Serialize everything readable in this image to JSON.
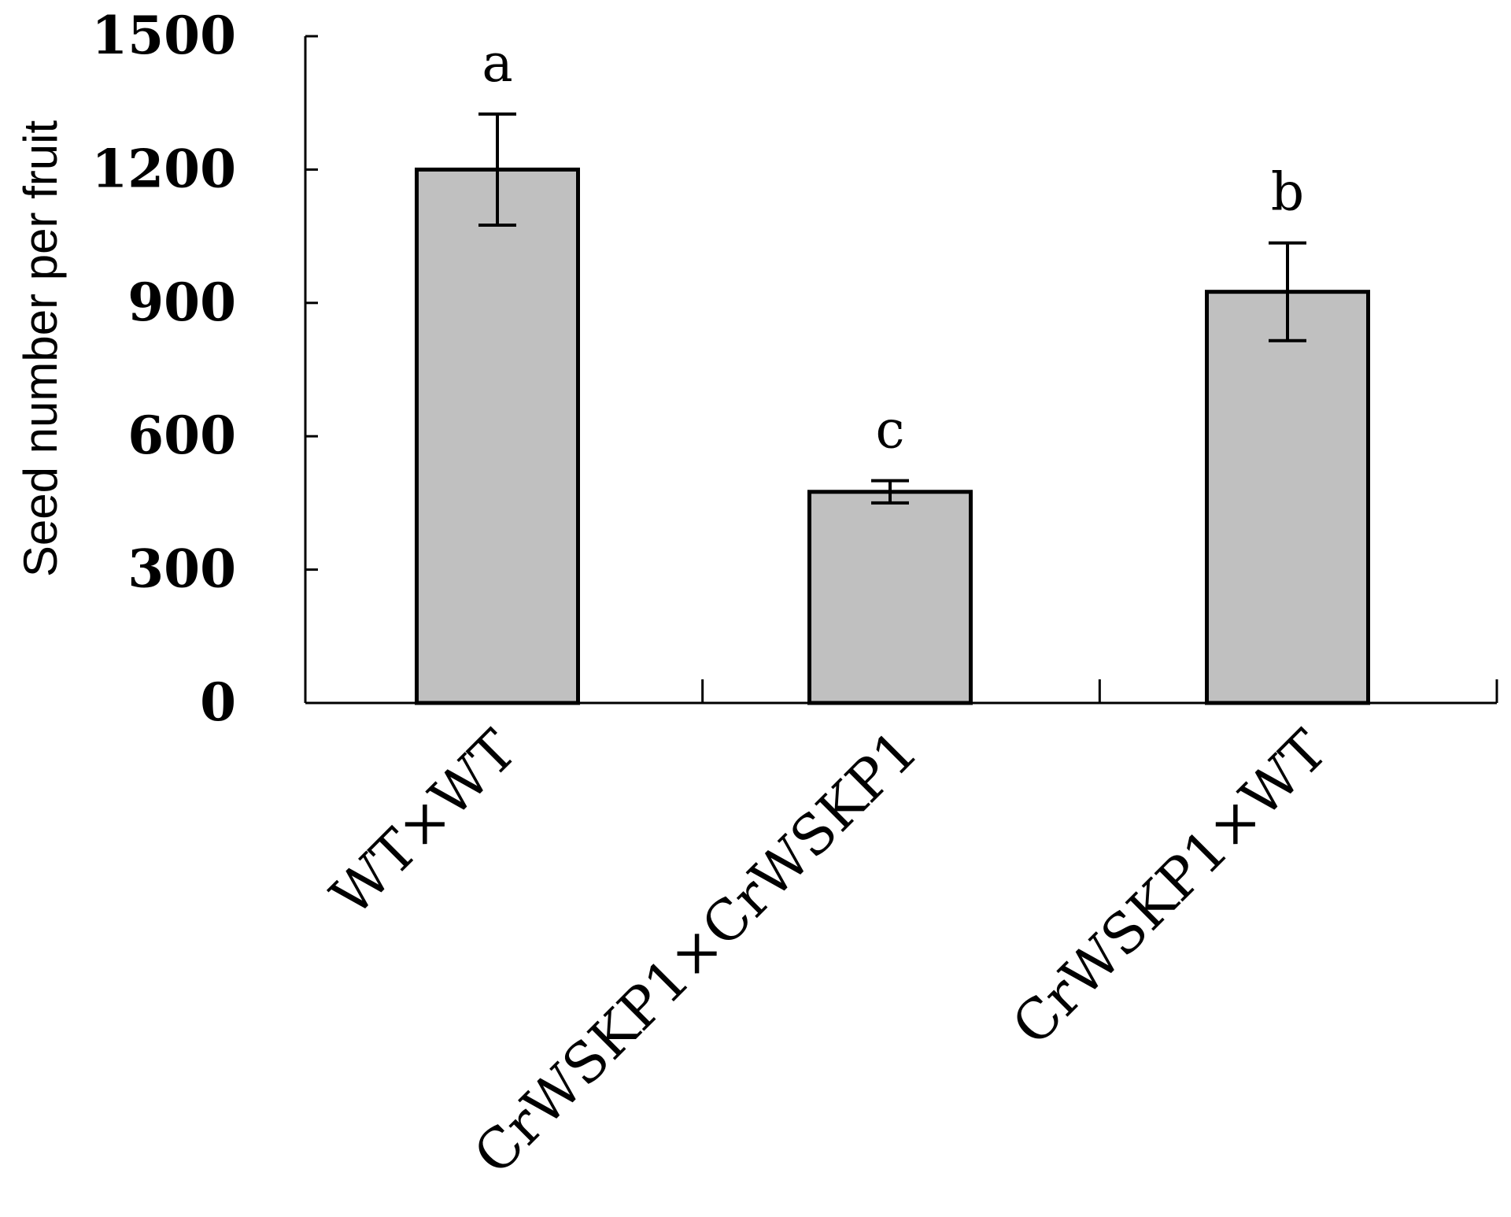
{
  "chart_data": {
    "type": "bar",
    "title": "",
    "xlabel": "",
    "ylabel": "Seed number per fruit",
    "ylim": [
      0,
      1500
    ],
    "yticks": [
      "0",
      "300",
      "600",
      "900",
      "1200",
      "1500"
    ],
    "ytick_values": [
      0,
      300,
      600,
      900,
      1200,
      1500
    ],
    "categories": [
      "WT×WT",
      "CrWSKP1×CrWSKP1",
      "CrWSKP1×WT"
    ],
    "values": [
      1200,
      475,
      925
    ],
    "errors": [
      125,
      25,
      110
    ],
    "significance": [
      "a",
      "c",
      "b"
    ],
    "bar_color": "#c0c0c0",
    "grid": false,
    "legend": "none"
  }
}
